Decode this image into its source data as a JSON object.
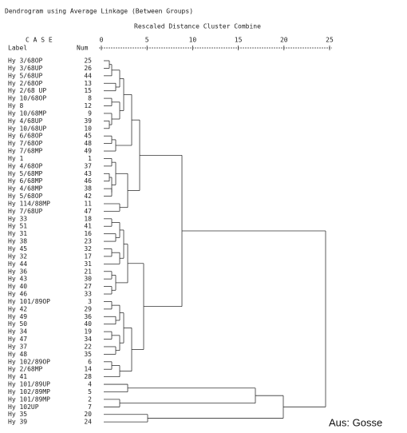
{
  "title": "Dendrogram using Average Linkage (Between Groups)",
  "subtitle": "Rescaled Distance Cluster Combine",
  "header": {
    "case": "C A S E",
    "label": "Label",
    "num": "Num"
  },
  "axis_ticks": [
    "0",
    "5",
    "10",
    "15",
    "20",
    "25"
  ],
  "rows": [
    {
      "label": "Hy 3/68OP",
      "num": "25"
    },
    {
      "label": "Hy 3/68UP",
      "num": "26"
    },
    {
      "label": "Hy 5/68UP",
      "num": "44"
    },
    {
      "label": "Hy 2/68OP",
      "num": "13"
    },
    {
      "label": "Hy 2/68 UP",
      "num": "15"
    },
    {
      "label": "Hy 10/68OP",
      "num": "8"
    },
    {
      "label": "Hy 8",
      "num": "12"
    },
    {
      "label": "Hy 10/68MP",
      "num": "9"
    },
    {
      "label": "Hy 4/68UP",
      "num": "39"
    },
    {
      "label": "Hy 10/68UP",
      "num": "10"
    },
    {
      "label": "Hy 6/68OP",
      "num": "45"
    },
    {
      "label": "Hy 7/68OP",
      "num": "48"
    },
    {
      "label": "Hy 7/68MP",
      "num": "49"
    },
    {
      "label": "Hy 1",
      "num": "1"
    },
    {
      "label": "Hy 4/68OP",
      "num": "37"
    },
    {
      "label": "Hy 5/68MP",
      "num": "43"
    },
    {
      "label": "Hy 6/68MP",
      "num": "46"
    },
    {
      "label": "Hy 4/68MP",
      "num": "38"
    },
    {
      "label": "Hy 5/68OP",
      "num": "42"
    },
    {
      "label": "Hy 114/88MP",
      "num": "11"
    },
    {
      "label": "Hy 7/68UP",
      "num": "47"
    },
    {
      "label": "Hy 33",
      "num": "18"
    },
    {
      "label": "Hy 51",
      "num": "41"
    },
    {
      "label": "Hy 31",
      "num": "16"
    },
    {
      "label": "Hy 38",
      "num": "23"
    },
    {
      "label": "Hy 45",
      "num": "32"
    },
    {
      "label": "Hy 32",
      "num": "17"
    },
    {
      "label": "Hy 44",
      "num": "31"
    },
    {
      "label": "Hy 36",
      "num": "21"
    },
    {
      "label": "Hy 43",
      "num": "30"
    },
    {
      "label": "Hy 40",
      "num": "27"
    },
    {
      "label": "Hy 46",
      "num": "33"
    },
    {
      "label": "Hy 101/89OP",
      "num": "3"
    },
    {
      "label": "Hy 42",
      "num": "29"
    },
    {
      "label": "Hy 49",
      "num": "36"
    },
    {
      "label": "Hy 50",
      "num": "40"
    },
    {
      "label": "Hy 34",
      "num": "19"
    },
    {
      "label": "Hy 47",
      "num": "34"
    },
    {
      "label": "Hy 37",
      "num": "22"
    },
    {
      "label": "Hy 48",
      "num": "35"
    },
    {
      "label": "Hy 102/89OP",
      "num": "6"
    },
    {
      "label": "Hy 2/68MP",
      "num": "14"
    },
    {
      "label": "Hy 41",
      "num": "28"
    },
    {
      "label": "Hy 101/89UP",
      "num": "4"
    },
    {
      "label": "Hy 102/89MP",
      "num": "5"
    },
    {
      "label": "Hy 101/89MP",
      "num": "2"
    },
    {
      "label": "Hy 102UP",
      "num": "7"
    },
    {
      "label": "Hy 35",
      "num": "20"
    },
    {
      "label": "Hy 39",
      "num": "24"
    }
  ],
  "caption": "Aus: Gosse"
}
